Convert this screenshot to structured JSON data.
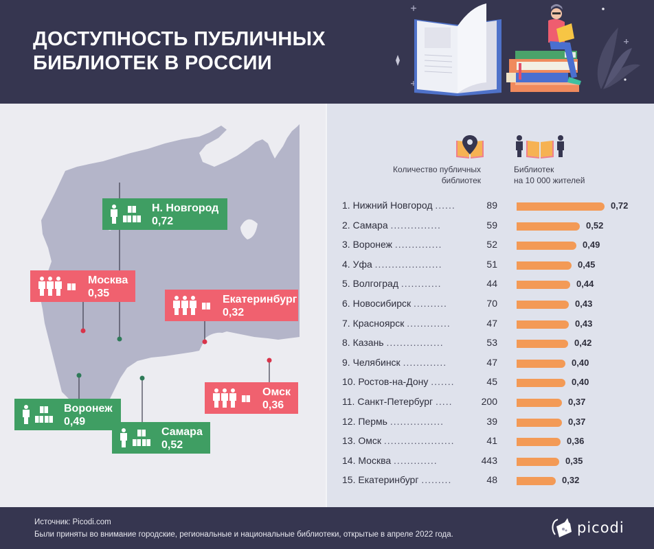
{
  "header": {
    "title_line1": "ДОСТУПНОСТЬ ПУБЛИЧНЫХ",
    "title_line2": "БИБЛИОТЕК В РОССИИ",
    "illustration": "open-book-and-reader-illustration"
  },
  "map": {
    "callouts": [
      {
        "city": "Н. Новгород",
        "value": "0,72",
        "status": "green",
        "people": 1,
        "books": 3
      },
      {
        "city": "Москва",
        "value": "0,35",
        "status": "red",
        "people": 3,
        "books": 1
      },
      {
        "city": "Екатеринбург",
        "value": "0,32",
        "status": "red",
        "people": 3,
        "books": 1
      },
      {
        "city": "Омск",
        "value": "0,36",
        "status": "red",
        "people": 3,
        "books": 1
      },
      {
        "city": "Воронеж",
        "value": "0,49",
        "status": "green",
        "people": 1,
        "books": 3
      },
      {
        "city": "Самара",
        "value": "0,52",
        "status": "green",
        "people": 1,
        "books": 3
      }
    ]
  },
  "legend": {
    "col1_icon": "map-pin-book-icon",
    "col1_line1": "Количество публичных",
    "col1_line2": "библиотек",
    "col2_icon": "people-book-icon",
    "col2_line1": "Библиотек",
    "col2_line2": "на 10 000 жителей"
  },
  "colors": {
    "header_bg": "#363650",
    "bar": "#f39a56",
    "green": "#3f9e63",
    "red": "#f0616f",
    "map_land": "#b4b5c9"
  },
  "chart_data": {
    "type": "bar",
    "orientation": "horizontal",
    "title": "Библиотек на 10 000 жителей",
    "categories": [
      "Нижний Новгород",
      "Самара",
      "Воронеж",
      "Уфа",
      "Волгоград",
      "Новосибирск",
      "Красноярск",
      "Казань",
      "Челябинск",
      "Ростов-на-Дону",
      "Санкт-Петербург",
      "Пермь",
      "Омск",
      "Москва",
      "Екатеринбург"
    ],
    "rows": [
      {
        "rank": "1.",
        "city": "Нижний Новгород",
        "dots": "......",
        "libraries": "89",
        "per10k": 0.72,
        "label": "0,72"
      },
      {
        "rank": "2.",
        "city": "Самара",
        "dots": "...............",
        "libraries": "59",
        "per10k": 0.52,
        "label": "0,52"
      },
      {
        "rank": "3.",
        "city": "Воронеж",
        "dots": "..............",
        "libraries": "52",
        "per10k": 0.49,
        "label": "0,49"
      },
      {
        "rank": "4.",
        "city": "Уфа",
        "dots": "....................",
        "libraries": "51",
        "per10k": 0.45,
        "label": "0,45"
      },
      {
        "rank": "5.",
        "city": "Волгоград",
        "dots": "............",
        "libraries": "44",
        "per10k": 0.44,
        "label": "0,44"
      },
      {
        "rank": "6.",
        "city": "Новосибирск",
        "dots": "..........",
        "libraries": "70",
        "per10k": 0.43,
        "label": "0,43"
      },
      {
        "rank": "7.",
        "city": "Красноярск",
        "dots": ".............",
        "libraries": "47",
        "per10k": 0.43,
        "label": "0,43"
      },
      {
        "rank": "8.",
        "city": "Казань",
        "dots": ".................",
        "libraries": "53",
        "per10k": 0.42,
        "label": "0,42"
      },
      {
        "rank": "9.",
        "city": "Челябинск",
        "dots": ".............",
        "libraries": "47",
        "per10k": 0.4,
        "label": "0,40"
      },
      {
        "rank": "10.",
        "city": "Ростов-на-Дону",
        "dots": ".......",
        "libraries": "45",
        "per10k": 0.4,
        "label": "0,40"
      },
      {
        "rank": "11.",
        "city": "Санкт-Петербург",
        "dots": ".....",
        "libraries": "200",
        "per10k": 0.37,
        "label": "0,37"
      },
      {
        "rank": "12.",
        "city": "Пермь",
        "dots": "................",
        "libraries": "39",
        "per10k": 0.37,
        "label": "0,37"
      },
      {
        "rank": "13.",
        "city": "Омск",
        "dots": ".....................",
        "libraries": "41",
        "per10k": 0.36,
        "label": "0,36"
      },
      {
        "rank": "14.",
        "city": "Москва",
        "dots": ".............",
        "libraries": "443",
        "per10k": 0.35,
        "label": "0,35"
      },
      {
        "rank": "15.",
        "city": "Екатеринбург",
        "dots": ".........",
        "libraries": "48",
        "per10k": 0.32,
        "label": "0,32"
      }
    ],
    "xlim": [
      0,
      0.72
    ]
  },
  "footer": {
    "source": "Источник: Picodi.com",
    "note": "Были приняты во внимание городские, региональные и национальные библиотеки, открытые в апреле 2022 года.",
    "logo_text": "picodi"
  }
}
